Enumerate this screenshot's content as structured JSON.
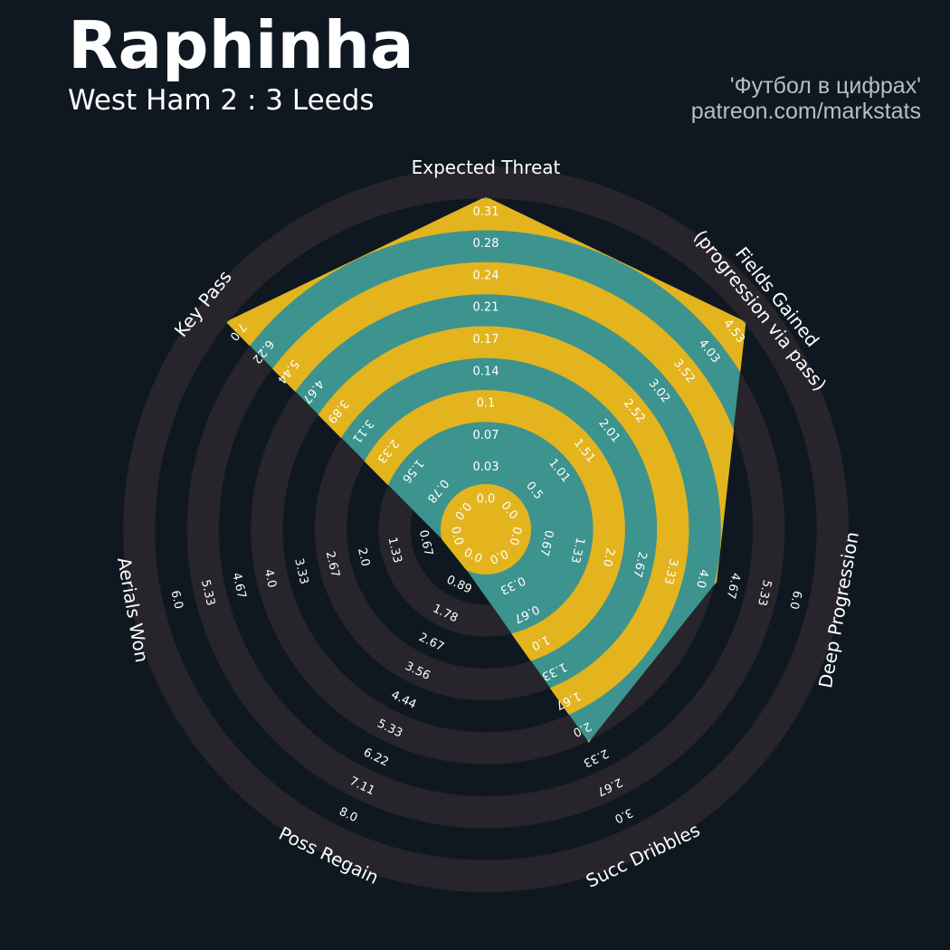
{
  "header": {
    "title": "Raphinha",
    "subtitle": "West Ham 2 : 3 Leeds",
    "credit_line1": "'Футбол в цифрах'",
    "credit_line2": "patreon.com/markstats"
  },
  "colors": {
    "background": "#0f1820",
    "ring_band": "#27242b",
    "player_fill": "#3d938e",
    "ring_highlight": "#e3b41e",
    "text": "#ffffff",
    "credit_text": "#b9bdc2"
  },
  "chart_data": {
    "type": "radar",
    "grid": "concentric alternating bands",
    "params": [
      {
        "label": "Expected Threat",
        "min": 0.0,
        "max": 0.31,
        "value": 0.31,
        "ticks": [
          "0.0",
          "0.03",
          "0.07",
          "0.1",
          "0.14",
          "0.17",
          "0.21",
          "0.24",
          "0.28",
          "0.31"
        ]
      },
      {
        "label": "Fields Gained\n(progression via pass)",
        "min": 0.0,
        "max": 4.53,
        "value": 4.53,
        "ticks": [
          "0.0",
          "0.5",
          "1.01",
          "1.51",
          "2.01",
          "2.52",
          "3.02",
          "3.52",
          "4.03",
          "4.53"
        ]
      },
      {
        "label": "Deep Progression",
        "min": 0.0,
        "max": 6.0,
        "value": 4.0,
        "ticks": [
          "0.0",
          "0.67",
          "1.33",
          "2.0",
          "2.67",
          "3.33",
          "4.0",
          "4.67",
          "5.33",
          "6.0"
        ]
      },
      {
        "label": "Succ Dribbles",
        "min": 0.0,
        "max": 3.0,
        "value": 2.0,
        "ticks": [
          "0.0",
          "0.33",
          "0.67",
          "1.0",
          "1.33",
          "1.67",
          "2.0",
          "2.33",
          "2.67",
          "3.0"
        ]
      },
      {
        "label": "Poss Regain",
        "min": 0.0,
        "max": 8.0,
        "value": 0.0,
        "ticks": [
          "0.0",
          "0.89",
          "1.78",
          "2.67",
          "3.56",
          "4.44",
          "5.33",
          "6.22",
          "7.11",
          "8.0"
        ]
      },
      {
        "label": "Aerials Won",
        "min": 0.0,
        "max": 6.0,
        "value": 0.0,
        "ticks": [
          "0.0",
          "0.67",
          "1.33",
          "2.0",
          "2.67",
          "3.33",
          "4.0",
          "4.67",
          "5.33",
          "6.0"
        ]
      },
      {
        "label": "Key Pass",
        "min": 0.0,
        "max": 7.0,
        "value": 7.0,
        "ticks": [
          "0.0",
          "0.78",
          "1.56",
          "2.33",
          "3.11",
          "3.89",
          "4.67",
          "5.44",
          "6.22",
          "7.0"
        ]
      }
    ]
  }
}
